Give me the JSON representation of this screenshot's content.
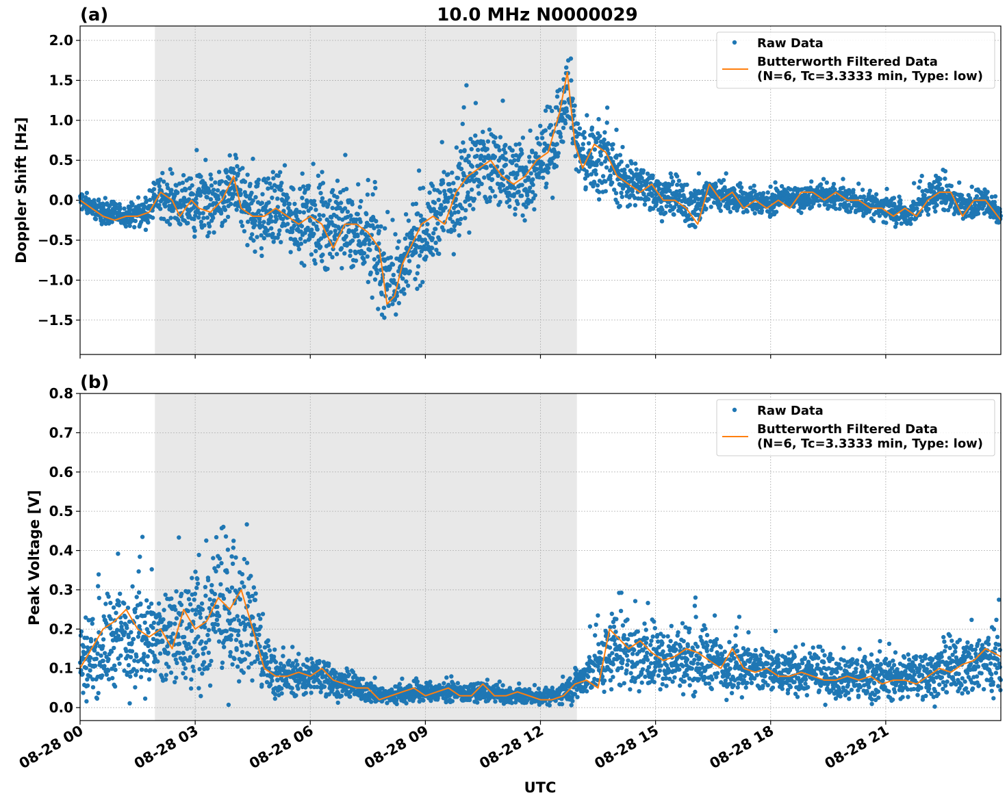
{
  "figure": {
    "title": "10.0 MHz N0000029",
    "xlabel": "UTC",
    "x_tick_labels": [
      "08-28 00",
      "08-28 03",
      "08-28 06",
      "08-28 09",
      "08-28 12",
      "08-28 15",
      "08-28 18",
      "08-28 21"
    ],
    "shaded_interval_hours": [
      1.95,
      12.95
    ]
  },
  "colors": {
    "raw": "#1f77b4",
    "filtered": "#ff7f0e",
    "shade": "#e8e8e8",
    "grid": "#b0b0b0"
  },
  "chart_data": [
    {
      "type": "scatter",
      "panel_label": "(a)",
      "ylabel": "Doppler Shift [Hz]",
      "xlim_hours": [
        0,
        24
      ],
      "ylim": [
        -1.93,
        2.18
      ],
      "y_ticks": [
        2.0,
        1.5,
        1.0,
        0.5,
        0.0,
        -0.5,
        -1.0,
        -1.5
      ],
      "y_tick_labels": [
        "2.0",
        "1.5",
        "1.0",
        "0.5",
        "0.0",
        "−0.5",
        "−1.0",
        "−1.5"
      ],
      "grid": true,
      "legend": {
        "position": "top-right",
        "raw": "Raw Data",
        "filtered_line1": "Butterworth Filtered Data",
        "filtered_line2": "(N=6, Tc=3.3333 min, Type: low)"
      },
      "filtered_series": {
        "x_hours": [
          0.0,
          0.3,
          0.6,
          0.9,
          1.2,
          1.5,
          1.8,
          2.1,
          2.4,
          2.6,
          2.9,
          3.1,
          3.4,
          3.7,
          4.0,
          4.2,
          4.5,
          4.8,
          5.1,
          5.4,
          5.7,
          6.0,
          6.3,
          6.6,
          6.9,
          7.2,
          7.5,
          7.8,
          8.0,
          8.2,
          8.4,
          8.6,
          8.9,
          9.2,
          9.5,
          9.8,
          10.1,
          10.4,
          10.7,
          11.0,
          11.3,
          11.6,
          11.9,
          12.2,
          12.5,
          12.7,
          12.9,
          13.1,
          13.4,
          13.7,
          14.0,
          14.3,
          14.6,
          14.9,
          15.2,
          15.5,
          15.8,
          16.1,
          16.4,
          16.7,
          17.0,
          17.3,
          17.6,
          17.9,
          18.2,
          18.5,
          18.8,
          19.1,
          19.4,
          19.7,
          20.0,
          20.3,
          20.6,
          20.9,
          21.2,
          21.5,
          21.8,
          22.1,
          22.4,
          22.7,
          23.0,
          23.3,
          23.6,
          24.0
        ],
        "y": [
          0.0,
          -0.1,
          -0.2,
          -0.25,
          -0.2,
          -0.2,
          -0.15,
          0.1,
          0.0,
          -0.2,
          0.0,
          -0.1,
          -0.15,
          0.0,
          0.3,
          -0.1,
          -0.2,
          -0.2,
          -0.1,
          -0.2,
          -0.3,
          -0.2,
          -0.3,
          -0.6,
          -0.3,
          -0.3,
          -0.4,
          -0.6,
          -1.3,
          -1.2,
          -0.8,
          -0.6,
          -0.3,
          -0.2,
          -0.3,
          0.1,
          0.3,
          0.4,
          0.5,
          0.3,
          0.2,
          0.3,
          0.5,
          0.6,
          1.1,
          1.6,
          0.7,
          0.4,
          0.7,
          0.6,
          0.3,
          0.2,
          0.1,
          0.2,
          0.0,
          0.0,
          -0.1,
          -0.3,
          0.2,
          0.0,
          0.1,
          -0.1,
          0.0,
          -0.1,
          0.0,
          -0.1,
          0.1,
          0.1,
          0.0,
          0.1,
          0.0,
          0.0,
          -0.1,
          -0.1,
          -0.2,
          -0.1,
          -0.2,
          0.0,
          0.1,
          0.1,
          -0.2,
          0.0,
          0.0,
          -0.25
        ]
      },
      "raw_series": {
        "x_hours": [
          0.0,
          0.6,
          1.2,
          1.8,
          2.0,
          2.4,
          2.8,
          3.2,
          3.6,
          4.0,
          4.4,
          4.8,
          5.2,
          5.6,
          6.0,
          6.4,
          6.8,
          7.2,
          7.6,
          8.0,
          8.4,
          8.8,
          9.2,
          9.6,
          10.0,
          10.4,
          10.8,
          11.2,
          11.6,
          12.0,
          12.4,
          12.7,
          13.0,
          13.3,
          13.6,
          14.0,
          14.4,
          14.8,
          15.2,
          15.6,
          16.0,
          16.4,
          16.8,
          17.2,
          17.6,
          18.0,
          18.4,
          18.8,
          19.2,
          19.6,
          20.0,
          20.4,
          20.8,
          21.2,
          21.6,
          22.0,
          22.4,
          22.8,
          23.2,
          23.6,
          24.0
        ],
        "center": [
          0.0,
          -0.15,
          -0.2,
          -0.15,
          0.05,
          0.0,
          -0.1,
          0.0,
          -0.1,
          0.2,
          -0.1,
          -0.2,
          -0.1,
          -0.2,
          -0.25,
          -0.35,
          -0.3,
          -0.35,
          -0.55,
          -1.0,
          -0.9,
          -0.5,
          -0.3,
          0.0,
          0.3,
          0.45,
          0.4,
          0.3,
          0.25,
          0.4,
          0.8,
          1.5,
          0.6,
          0.5,
          0.6,
          0.3,
          0.2,
          0.15,
          0.05,
          0.0,
          -0.1,
          0.1,
          0.05,
          0.0,
          0.0,
          -0.05,
          0.05,
          0.0,
          0.05,
          0.05,
          0.0,
          -0.05,
          -0.1,
          -0.1,
          -0.2,
          0.0,
          0.1,
          0.0,
          -0.1,
          0.0,
          -0.2
        ],
        "spread": [
          0.1,
          0.12,
          0.1,
          0.15,
          0.2,
          0.25,
          0.3,
          0.35,
          0.35,
          0.35,
          0.4,
          0.4,
          0.4,
          0.4,
          0.4,
          0.45,
          0.45,
          0.45,
          0.45,
          0.45,
          0.45,
          0.45,
          0.45,
          0.5,
          0.55,
          0.55,
          0.5,
          0.45,
          0.4,
          0.4,
          0.45,
          0.4,
          0.35,
          0.4,
          0.4,
          0.3,
          0.25,
          0.2,
          0.2,
          0.2,
          0.25,
          0.2,
          0.15,
          0.15,
          0.15,
          0.12,
          0.12,
          0.12,
          0.12,
          0.12,
          0.12,
          0.12,
          0.15,
          0.15,
          0.15,
          0.2,
          0.2,
          0.15,
          0.15,
          0.15,
          0.15
        ]
      }
    },
    {
      "type": "scatter",
      "panel_label": "(b)",
      "ylabel": "Peak Voltage [V]",
      "xlim_hours": [
        0,
        24
      ],
      "ylim": [
        -0.033,
        0.8
      ],
      "y_ticks": [
        0.8,
        0.7,
        0.6,
        0.5,
        0.4,
        0.3,
        0.2,
        0.1,
        0.0
      ],
      "y_tick_labels": [
        "0.8",
        "0.7",
        "0.6",
        "0.5",
        "0.4",
        "0.3",
        "0.2",
        "0.1",
        "0.0"
      ],
      "grid": true,
      "legend": {
        "position": "top-right",
        "raw": "Raw Data",
        "filtered_line1": "Butterworth Filtered Data",
        "filtered_line2": "(N=6, Tc=3.3333 min, Type: low)"
      },
      "filtered_series": {
        "x_hours": [
          0.0,
          0.3,
          0.6,
          0.9,
          1.2,
          1.5,
          1.8,
          2.1,
          2.4,
          2.7,
          3.0,
          3.3,
          3.6,
          3.9,
          4.2,
          4.5,
          4.8,
          5.1,
          5.4,
          5.7,
          6.0,
          6.3,
          6.6,
          6.9,
          7.2,
          7.5,
          7.8,
          8.1,
          8.4,
          8.7,
          9.0,
          9.3,
          9.6,
          9.9,
          10.2,
          10.5,
          10.8,
          11.1,
          11.4,
          11.7,
          12.0,
          12.3,
          12.6,
          12.9,
          13.2,
          13.5,
          13.8,
          14.0,
          14.3,
          14.6,
          14.9,
          15.2,
          15.5,
          15.8,
          16.1,
          16.4,
          16.7,
          17.0,
          17.3,
          17.6,
          17.9,
          18.2,
          18.5,
          18.8,
          19.1,
          19.4,
          19.7,
          20.0,
          20.3,
          20.6,
          20.9,
          21.2,
          21.5,
          21.8,
          22.1,
          22.4,
          22.7,
          23.0,
          23.3,
          23.6,
          24.0
        ],
        "y": [
          0.1,
          0.15,
          0.2,
          0.22,
          0.25,
          0.2,
          0.18,
          0.2,
          0.15,
          0.25,
          0.2,
          0.22,
          0.28,
          0.25,
          0.3,
          0.2,
          0.1,
          0.08,
          0.08,
          0.09,
          0.08,
          0.1,
          0.07,
          0.06,
          0.05,
          0.05,
          0.02,
          0.03,
          0.04,
          0.05,
          0.03,
          0.04,
          0.05,
          0.03,
          0.03,
          0.06,
          0.03,
          0.03,
          0.04,
          0.03,
          0.02,
          0.02,
          0.03,
          0.06,
          0.07,
          0.05,
          0.2,
          0.18,
          0.15,
          0.17,
          0.14,
          0.12,
          0.13,
          0.15,
          0.14,
          0.12,
          0.1,
          0.15,
          0.1,
          0.09,
          0.1,
          0.08,
          0.08,
          0.09,
          0.08,
          0.07,
          0.07,
          0.08,
          0.07,
          0.08,
          0.06,
          0.07,
          0.07,
          0.06,
          0.08,
          0.1,
          0.09,
          0.11,
          0.12,
          0.15,
          0.13
        ]
      },
      "raw_series": {
        "x_hours": [
          0.0,
          0.5,
          1.0,
          1.5,
          2.0,
          2.5,
          3.0,
          3.5,
          4.0,
          4.4,
          4.8,
          5.2,
          5.6,
          6.0,
          6.4,
          6.8,
          7.2,
          7.6,
          8.0,
          8.4,
          8.8,
          9.2,
          9.6,
          10.0,
          10.4,
          10.8,
          11.2,
          11.6,
          12.0,
          12.4,
          12.8,
          13.2,
          13.6,
          14.0,
          14.4,
          14.8,
          15.2,
          15.6,
          16.0,
          16.4,
          16.8,
          17.2,
          17.6,
          18.0,
          18.4,
          18.8,
          19.2,
          19.6,
          20.0,
          20.4,
          20.8,
          21.2,
          21.6,
          22.0,
          22.4,
          22.8,
          23.2,
          23.6,
          24.0
        ],
        "center": [
          0.12,
          0.15,
          0.18,
          0.2,
          0.17,
          0.18,
          0.2,
          0.23,
          0.26,
          0.25,
          0.12,
          0.08,
          0.08,
          0.08,
          0.08,
          0.06,
          0.05,
          0.04,
          0.03,
          0.035,
          0.04,
          0.04,
          0.04,
          0.035,
          0.04,
          0.035,
          0.03,
          0.03,
          0.025,
          0.03,
          0.05,
          0.08,
          0.12,
          0.15,
          0.14,
          0.13,
          0.12,
          0.13,
          0.13,
          0.12,
          0.11,
          0.11,
          0.1,
          0.095,
          0.09,
          0.09,
          0.085,
          0.085,
          0.08,
          0.08,
          0.08,
          0.075,
          0.08,
          0.085,
          0.09,
          0.1,
          0.11,
          0.12,
          0.12
        ],
        "spread": [
          0.08,
          0.1,
          0.12,
          0.12,
          0.12,
          0.13,
          0.14,
          0.15,
          0.16,
          0.15,
          0.07,
          0.04,
          0.04,
          0.04,
          0.04,
          0.03,
          0.025,
          0.025,
          0.02,
          0.02,
          0.025,
          0.02,
          0.02,
          0.02,
          0.02,
          0.02,
          0.015,
          0.015,
          0.015,
          0.02,
          0.03,
          0.05,
          0.08,
          0.09,
          0.08,
          0.08,
          0.07,
          0.07,
          0.08,
          0.07,
          0.06,
          0.06,
          0.06,
          0.055,
          0.05,
          0.05,
          0.05,
          0.05,
          0.05,
          0.05,
          0.05,
          0.045,
          0.05,
          0.05,
          0.055,
          0.06,
          0.07,
          0.08,
          0.08
        ]
      }
    }
  ]
}
